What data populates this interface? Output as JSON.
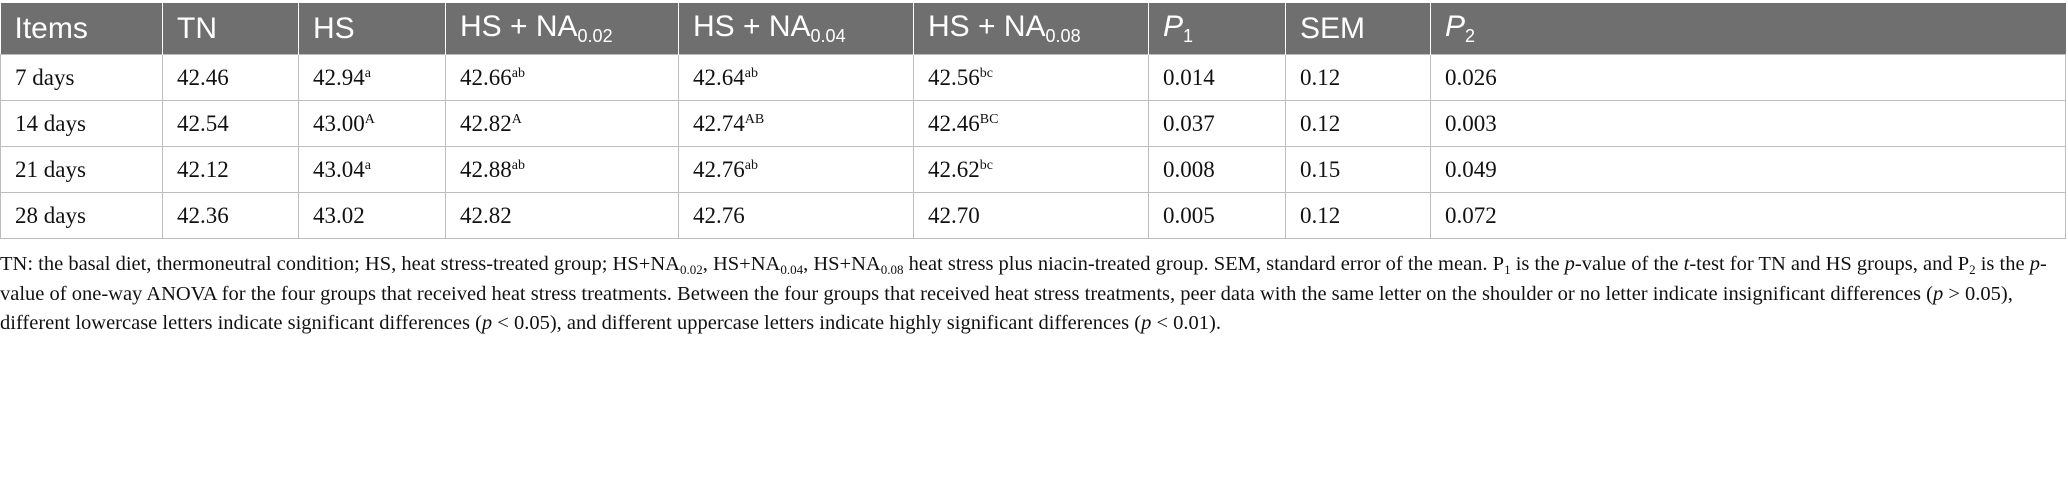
{
  "table": {
    "header": [
      "Items",
      "TN",
      "HS",
      {
        "text": "HS + NA",
        "sub": "0.02"
      },
      {
        "text": "HS + NA",
        "sub": "0.04"
      },
      {
        "text": "HS + NA",
        "sub": "0.08"
      },
      {
        "i": "P",
        "sub": "1"
      },
      "SEM",
      {
        "i": "P",
        "sub": "2"
      }
    ],
    "rows": [
      [
        "7 days",
        "42.46",
        {
          "text": "42.94",
          "sup": "a"
        },
        {
          "text": "42.66",
          "sup": "ab"
        },
        {
          "text": "42.64",
          "sup": "ab"
        },
        {
          "text": "42.56",
          "sup": "bc"
        },
        "0.014",
        "0.12",
        "0.026"
      ],
      [
        "14 days",
        "42.54",
        {
          "text": "43.00",
          "sup": "A"
        },
        {
          "text": "42.82",
          "sup": "A"
        },
        {
          "text": "42.74",
          "sup": "AB"
        },
        {
          "text": "42.46",
          "sup": "BC"
        },
        "0.037",
        "0.12",
        "0.003"
      ],
      [
        "21 days",
        "42.12",
        {
          "text": "43.04",
          "sup": "a"
        },
        {
          "text": "42.88",
          "sup": "ab"
        },
        {
          "text": "42.76",
          "sup": "ab"
        },
        {
          "text": "42.62",
          "sup": "bc"
        },
        "0.008",
        "0.15",
        "0.049"
      ],
      [
        "28 days",
        "42.36",
        "43.02",
        "42.82",
        "42.76",
        "42.70",
        "0.005",
        "0.12",
        "0.072"
      ]
    ]
  },
  "footnote": [
    "TN: the basal diet, thermoneutral condition; HS, heat stress-treated group; HS+NA",
    {
      "sub": "0.02"
    },
    ", HS+NA",
    {
      "sub": "0.04"
    },
    ", HS+NA",
    {
      "sub": "0.08"
    },
    " heat stress plus niacin-treated group. SEM, standard error of the mean. P",
    {
      "sub": "1"
    },
    " is the ",
    {
      "i": "p"
    },
    "-value of the ",
    {
      "i": "t"
    },
    "-test for TN and HS groups, and P",
    {
      "sub": "2"
    },
    " is the ",
    {
      "i": "p"
    },
    "-value of one-way ANOVA for the four groups that received heat stress treatments. Between the four groups that received heat stress treatments, peer data with the same letter on the shoulder or no letter indicate insignificant differences (",
    {
      "i": "p"
    },
    " > 0.05), different lowercase letters indicate significant differences (",
    {
      "i": "p"
    },
    " < 0.05), and different uppercase letters indicate highly significant differences (",
    {
      "i": "p"
    },
    " < 0.01)."
  ]
}
